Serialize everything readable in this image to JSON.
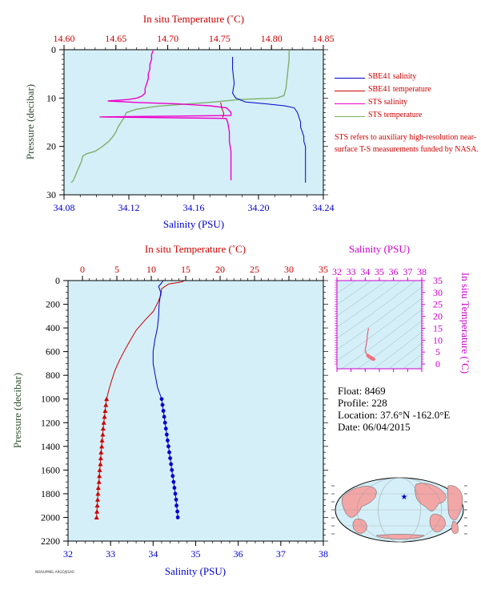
{
  "colors": {
    "plot_bg": "#d4eff8",
    "salinity": "#0000cc",
    "temperature": "#cc0000",
    "sts_salinity": "#ee00cc",
    "sts_temperature": "#7fb069",
    "axis_red": "#cc0000",
    "axis_blue": "#0000cc",
    "axis_green": "#2f4f2f",
    "magenta": "#cc00cc",
    "land": "#f2a6a6",
    "ocean": "#d4eff8"
  },
  "legend": {
    "items": [
      {
        "label": "SBE41 salinity",
        "color": "#0000cc"
      },
      {
        "label": "SBE41 temperature",
        "color": "#cc0000"
      },
      {
        "label": "STS salinity",
        "color": "#ee00cc"
      },
      {
        "label": "STS temperature",
        "color": "#7fb069"
      }
    ],
    "note": "STS refers to auxiliary high-resolution near-surface T-S measurements funded by NASA."
  },
  "info": {
    "float": "Float:  8469",
    "profile": "Profile:  228",
    "location": "Location:  37.6°N  -162.0°E",
    "date": "Date:  06/04/2015"
  },
  "credit": "NOAA/PMEL ARGO/JISAO",
  "chart_data": [
    {
      "type": "line",
      "id": "near-surface",
      "title": "",
      "top_xlabel": "In situ Temperature (˚C)",
      "xlabel": "Salinity (PSU)",
      "ylabel": "Pressure (decibar)",
      "temperature_range": [
        14.6,
        14.85
      ],
      "temperature_ticks": [
        "14.60",
        "14.65",
        "14.70",
        "14.75",
        "14.80",
        "14.85"
      ],
      "salinity_range": [
        34.08,
        34.24
      ],
      "salinity_ticks": [
        "34.08",
        "34.12",
        "34.16",
        "34.20",
        "34.24"
      ],
      "pressure_range": [
        0,
        30
      ],
      "pressure_ticks": [
        "0",
        "10",
        "20",
        "30"
      ],
      "series": [
        {
          "name": "SBE41 salinity",
          "axis": "salinity",
          "points": [
            [
              34.184,
              1.5
            ],
            [
              34.184,
              4
            ],
            [
              34.185,
              7
            ],
            [
              34.184,
              9
            ],
            [
              34.186,
              10
            ],
            [
              34.192,
              10.8
            ],
            [
              34.205,
              11.2
            ],
            [
              34.216,
              11.6
            ],
            [
              34.222,
              12.0
            ],
            [
              34.224,
              13
            ],
            [
              34.225,
              14
            ],
            [
              34.226,
              15
            ],
            [
              34.226,
              16
            ],
            [
              34.227,
              17
            ],
            [
              34.228,
              18
            ],
            [
              34.228,
              19
            ],
            [
              34.229,
              20
            ],
            [
              34.229,
              22
            ],
            [
              34.229,
              24
            ],
            [
              34.229,
              26
            ],
            [
              34.229,
              27.5
            ]
          ]
        },
        {
          "name": "SBE41 temperature",
          "axis": "temperature",
          "points": [
            [
              14.751,
              10.9
            ],
            [
              14.752,
              12.0
            ],
            [
              14.754,
              13.2
            ],
            [
              14.753,
              14.0
            ]
          ]
        },
        {
          "name": "STS salinity",
          "axis": "salinity",
          "points": [
            [
              34.135,
              0.2
            ],
            [
              34.134,
              1
            ],
            [
              34.134,
              2
            ],
            [
              34.133,
              3
            ],
            [
              34.133,
              4
            ],
            [
              34.132,
              5
            ],
            [
              34.132,
              6
            ],
            [
              34.131,
              7
            ],
            [
              34.13,
              8
            ],
            [
              34.13,
              9
            ],
            [
              34.128,
              9.6
            ],
            [
              34.125,
              10.0
            ],
            [
              34.12,
              10.3
            ],
            [
              34.107,
              10.6
            ],
            [
              34.125,
              10.9
            ],
            [
              34.15,
              11.2
            ],
            [
              34.17,
              11.6
            ],
            [
              34.18,
              12.0
            ],
            [
              34.182,
              12.6
            ],
            [
              34.183,
              13.0
            ],
            [
              34.183,
              13.6
            ],
            [
              34.102,
              13.9
            ],
            [
              34.18,
              14.2
            ],
            [
              34.181,
              15
            ],
            [
              34.182,
              17
            ],
            [
              34.182,
              19
            ],
            [
              34.183,
              21
            ],
            [
              34.183,
              23
            ],
            [
              34.183,
              25
            ],
            [
              34.183,
              27
            ]
          ]
        },
        {
          "name": "STS temperature",
          "axis": "temperature",
          "points": [
            [
              14.817,
              0.2
            ],
            [
              14.817,
              2
            ],
            [
              14.816,
              4
            ],
            [
              14.815,
              6
            ],
            [
              14.814,
              8
            ],
            [
              14.812,
              9.5
            ],
            [
              14.805,
              10.0
            ],
            [
              14.77,
              10.3
            ],
            [
              14.745,
              10.8
            ],
            [
              14.72,
              11.2
            ],
            [
              14.69,
              11.7
            ],
            [
              14.67,
              12.3
            ],
            [
              14.66,
              13.0
            ],
            [
              14.658,
              14.0
            ],
            [
              14.655,
              15
            ],
            [
              14.652,
              16
            ],
            [
              14.65,
              17
            ],
            [
              14.647,
              18
            ],
            [
              14.643,
              19
            ],
            [
              14.637,
              20
            ],
            [
              14.63,
              21
            ],
            [
              14.622,
              21.5
            ],
            [
              14.618,
              22
            ],
            [
              14.617,
              23
            ],
            [
              14.615,
              24
            ],
            [
              14.613,
              25
            ],
            [
              14.611,
              26
            ],
            [
              14.609,
              27
            ],
            [
              14.607,
              27.5
            ]
          ]
        }
      ]
    },
    {
      "type": "line",
      "id": "full-profile",
      "title": "",
      "top_xlabel": "In situ Temperature (˚C)",
      "xlabel": "Salinity (PSU)",
      "ylabel": "Pressure (decibar)",
      "temperature_range": [
        -2,
        35
      ],
      "temperature_ticks": [
        "0",
        "5",
        "10",
        "15",
        "20",
        "25",
        "30",
        "35"
      ],
      "salinity_range": [
        32,
        38
      ],
      "salinity_ticks": [
        "32",
        "33",
        "34",
        "35",
        "36",
        "37",
        "38"
      ],
      "pressure_range": [
        0,
        2200
      ],
      "pressure_ticks": [
        "0",
        "200",
        "400",
        "600",
        "800",
        "1000",
        "1200",
        "1400",
        "1600",
        "1800",
        "2000",
        "2200"
      ],
      "series": [
        {
          "name": "SBE41 temperature",
          "axis": "temperature",
          "points": [
            [
              14.8,
              0
            ],
            [
              14.5,
              10
            ],
            [
              12.5,
              30
            ],
            [
              11.5,
              70
            ],
            [
              11.4,
              120
            ],
            [
              11.0,
              180
            ],
            [
              10.3,
              260
            ],
            [
              9.0,
              340
            ],
            [
              7.8,
              420
            ],
            [
              7.0,
              500
            ],
            [
              6.2,
              580
            ],
            [
              5.4,
              670
            ],
            [
              4.7,
              760
            ],
            [
              4.2,
              850
            ],
            [
              3.8,
              930
            ],
            [
              3.5,
              1000
            ],
            [
              3.4,
              1050
            ],
            [
              3.3,
              1100
            ],
            [
              3.2,
              1150
            ],
            [
              3.1,
              1200
            ],
            [
              3.0,
              1250
            ],
            [
              2.95,
              1300
            ],
            [
              2.85,
              1350
            ],
            [
              2.8,
              1400
            ],
            [
              2.7,
              1450
            ],
            [
              2.65,
              1500
            ],
            [
              2.6,
              1550
            ],
            [
              2.5,
              1600
            ],
            [
              2.45,
              1650
            ],
            [
              2.4,
              1700
            ],
            [
              2.3,
              1750
            ],
            [
              2.25,
              1800
            ],
            [
              2.2,
              1850
            ],
            [
              2.15,
              1900
            ],
            [
              2.1,
              1950
            ],
            [
              2.05,
              2000
            ]
          ],
          "markers_from_pressure": 1000
        },
        {
          "name": "SBE41 salinity",
          "axis": "salinity",
          "points": [
            [
              34.23,
              0
            ],
            [
              34.22,
              10
            ],
            [
              34.13,
              50
            ],
            [
              34.18,
              100
            ],
            [
              34.14,
              200
            ],
            [
              34.13,
              300
            ],
            [
              34.1,
              400
            ],
            [
              34.04,
              500
            ],
            [
              34.0,
              600
            ],
            [
              34.0,
              700
            ],
            [
              34.05,
              800
            ],
            [
              34.1,
              900
            ],
            [
              34.2,
              1000
            ],
            [
              34.22,
              1050
            ],
            [
              34.24,
              1100
            ],
            [
              34.26,
              1150
            ],
            [
              34.28,
              1200
            ],
            [
              34.3,
              1250
            ],
            [
              34.32,
              1300
            ],
            [
              34.34,
              1350
            ],
            [
              34.36,
              1400
            ],
            [
              34.38,
              1450
            ],
            [
              34.4,
              1500
            ],
            [
              34.42,
              1550
            ],
            [
              34.44,
              1600
            ],
            [
              34.46,
              1650
            ],
            [
              34.48,
              1700
            ],
            [
              34.5,
              1750
            ],
            [
              34.52,
              1800
            ],
            [
              34.54,
              1850
            ],
            [
              34.55,
              1900
            ],
            [
              34.57,
              1950
            ],
            [
              34.58,
              2000
            ]
          ],
          "markers_from_pressure": 1000
        }
      ]
    },
    {
      "type": "scatter",
      "id": "ts-diagram",
      "title": "",
      "top_xlabel": "Salinity (PSU)",
      "right_ylabel": "In situ Temperature (˚C)",
      "salinity_range": [
        32,
        38
      ],
      "salinity_ticks": [
        "32",
        "33",
        "34",
        "35",
        "36",
        "37",
        "38"
      ],
      "temperature_range": [
        -2,
        35
      ],
      "temperature_ticks": [
        "0",
        "5",
        "10",
        "15",
        "20",
        "25",
        "30",
        "35"
      ],
      "points": [
        [
          34.23,
          14.8
        ],
        [
          34.13,
          11.5
        ],
        [
          34.14,
          11.0
        ],
        [
          34.1,
          9.0
        ],
        [
          34.04,
          7.0
        ],
        [
          34.0,
          6.2
        ],
        [
          34.0,
          5.4
        ],
        [
          34.05,
          4.7
        ],
        [
          34.1,
          4.2
        ],
        [
          34.2,
          3.5
        ],
        [
          34.3,
          3.0
        ],
        [
          34.4,
          2.65
        ],
        [
          34.5,
          2.3
        ],
        [
          34.58,
          2.05
        ]
      ]
    }
  ]
}
